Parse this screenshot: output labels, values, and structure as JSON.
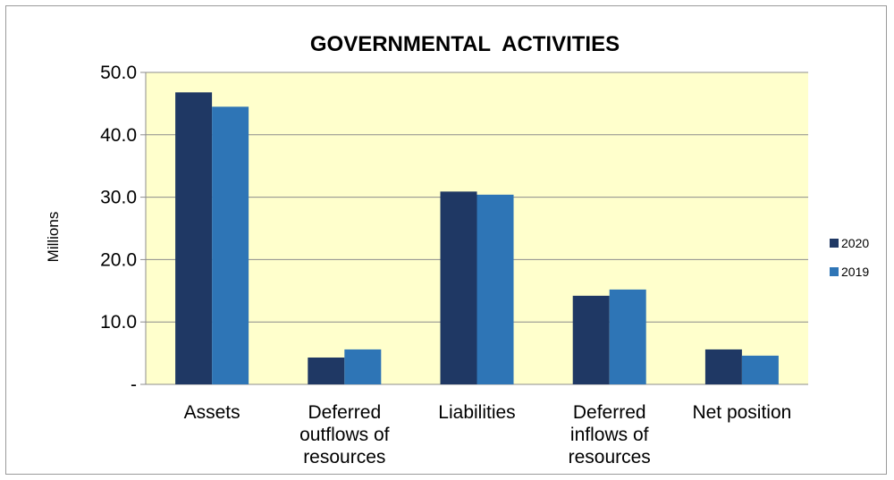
{
  "chart_data": {
    "type": "bar",
    "title": "GOVERNMENTAL  ACTIVITIES",
    "ylabel": "Millions",
    "xlabel": "",
    "ylim": [
      0,
      50
    ],
    "yticks": [
      {
        "value": 0,
        "label": "-"
      },
      {
        "value": 10,
        "label": "10.0"
      },
      {
        "value": 20,
        "label": "20.0"
      },
      {
        "value": 30,
        "label": "30.0"
      },
      {
        "value": 40,
        "label": "40.0"
      },
      {
        "value": 50,
        "label": "50.0"
      }
    ],
    "categories": [
      [
        "Assets"
      ],
      [
        "Deferred",
        "outflows of",
        "resources"
      ],
      [
        "Liabilities"
      ],
      [
        "Deferred",
        "inflows of",
        "resources"
      ],
      [
        "Net position"
      ]
    ],
    "series": [
      {
        "name": "2020",
        "color": "#1F3864",
        "values": [
          46.8,
          4.3,
          30.9,
          14.2,
          5.6
        ]
      },
      {
        "name": "2019",
        "color": "#2E75B6",
        "values": [
          44.5,
          5.6,
          30.4,
          15.2,
          4.6
        ]
      }
    ],
    "plot_background": "#FFFFCC",
    "grid": true,
    "legend_position": "right"
  }
}
